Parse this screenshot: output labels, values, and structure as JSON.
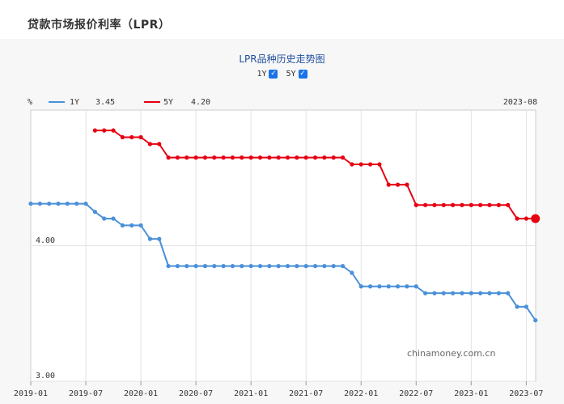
{
  "page": {
    "title": "贷款市场报价利率（LPR）"
  },
  "toggles": [
    {
      "label": "1Y",
      "checked": true
    },
    {
      "label": "5Y",
      "checked": true
    }
  ],
  "watermark": "chinamoney.com.cn",
  "chart_data": {
    "type": "line",
    "title": "LPR品种历史走势图",
    "ylabel": "%",
    "current_date": "2023-08",
    "ylim": [
      3.0,
      5.0
    ],
    "yticks": [
      "4.00",
      "3.00"
    ],
    "xticks": [
      "2019-01",
      "2019-07",
      "2020-01",
      "2020-07",
      "2021-01",
      "2021-07",
      "2022-01",
      "2022-07",
      "2023-01",
      "2023-07"
    ],
    "legend": [
      {
        "name": "1Y",
        "value": "3.45",
        "color": "#4a90d9"
      },
      {
        "name": "5Y",
        "value": "4.20",
        "color": "#e60012"
      }
    ],
    "series": [
      {
        "name": "1Y",
        "color": "#4a90d9",
        "start": "2019-01",
        "values": [
          4.31,
          4.31,
          4.31,
          4.31,
          4.31,
          4.31,
          4.31,
          4.25,
          4.2,
          4.2,
          4.15,
          4.15,
          4.15,
          4.05,
          4.05,
          3.85,
          3.85,
          3.85,
          3.85,
          3.85,
          3.85,
          3.85,
          3.85,
          3.85,
          3.85,
          3.85,
          3.85,
          3.85,
          3.85,
          3.85,
          3.85,
          3.85,
          3.85,
          3.85,
          3.85,
          3.8,
          3.7,
          3.7,
          3.7,
          3.7,
          3.7,
          3.7,
          3.7,
          3.65,
          3.65,
          3.65,
          3.65,
          3.65,
          3.65,
          3.65,
          3.65,
          3.65,
          3.65,
          3.55,
          3.55,
          3.45
        ]
      },
      {
        "name": "5Y",
        "color": "#e60012",
        "start": "2019-08",
        "values": [
          4.85,
          4.85,
          4.85,
          4.8,
          4.8,
          4.8,
          4.75,
          4.75,
          4.65,
          4.65,
          4.65,
          4.65,
          4.65,
          4.65,
          4.65,
          4.65,
          4.65,
          4.65,
          4.65,
          4.65,
          4.65,
          4.65,
          4.65,
          4.65,
          4.65,
          4.65,
          4.65,
          4.65,
          4.6,
          4.6,
          4.6,
          4.6,
          4.45,
          4.45,
          4.45,
          4.3,
          4.3,
          4.3,
          4.3,
          4.3,
          4.3,
          4.3,
          4.3,
          4.3,
          4.3,
          4.3,
          4.2,
          4.2,
          4.2
        ]
      }
    ]
  }
}
